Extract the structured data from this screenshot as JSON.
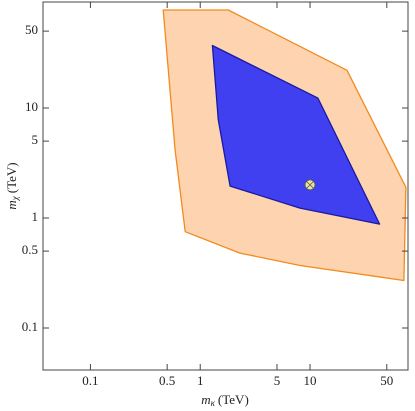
{
  "chart_data": {
    "type": "region",
    "x_label": {
      "symbol": "m",
      "subscript": "κ",
      "unit": "(TeV)"
    },
    "y_label": {
      "symbol": "m",
      "subscript": "χ",
      "unit": "(TeV)"
    },
    "log_x": true,
    "log_y": true,
    "xlim": [
      0.037,
      78
    ],
    "ylim": [
      0.0415,
      92
    ],
    "xticks": [
      0.1,
      0.5,
      1,
      5,
      10,
      50
    ],
    "yticks": [
      0.1,
      0.5,
      1,
      5,
      10,
      50
    ],
    "series": [
      {
        "color": "#f28a1e",
        "fill": "#fdd3b0",
        "x": [
          0.46,
          1.8,
          21.7,
          74.6,
          71.5,
          8.1,
          2.3,
          0.73,
          0.59
        ],
        "y": [
          77.8,
          77.8,
          22,
          1.9,
          0.27,
          0.37,
          0.48,
          0.75,
          4.15
        ]
      },
      {
        "color": "#1a1aa0",
        "fill": "#4040f0",
        "x": [
          1.29,
          11.8,
          43,
          8.1,
          1.87,
          1.46
        ],
        "y": [
          37,
          12.3,
          0.88,
          1.23,
          1.95,
          7.8
        ]
      }
    ],
    "points": {
      "color": "#e8e4a0",
      "x": [
        10
      ],
      "y": [
        2
      ]
    }
  }
}
